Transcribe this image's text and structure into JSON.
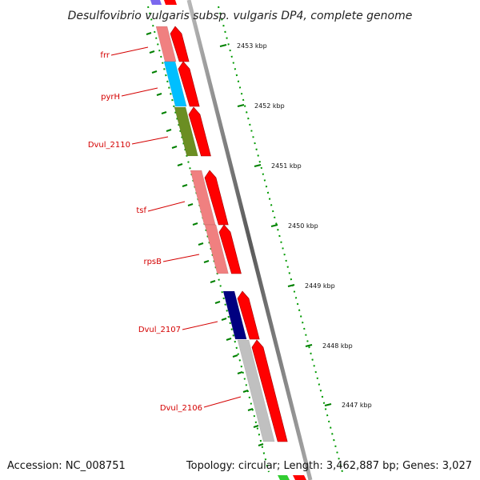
{
  "title": "Desulfovibrio vulgaris subsp. vulgaris DP4, complete genome",
  "footer": {
    "accession": "Accession: NC_008751",
    "summary": "Topology: circular; Length: 3,462,887 bp; Genes: 3,027"
  },
  "scale_labels": [
    {
      "label": "2453 kbp",
      "kbp": 2453
    },
    {
      "label": "2452 kbp",
      "kbp": 2452
    },
    {
      "label": "2451 kbp",
      "kbp": 2451
    },
    {
      "label": "2450 kbp",
      "kbp": 2450
    },
    {
      "label": "2449 kbp",
      "kbp": 2449
    },
    {
      "label": "2448 kbp",
      "kbp": 2448
    },
    {
      "label": "2447 kbp",
      "kbp": 2447
    }
  ],
  "genes": [
    {
      "name": "frr",
      "color": "#f08080"
    },
    {
      "name": "pyrH",
      "color": "#00bfff"
    },
    {
      "name": "Dvul_2110",
      "color": "#6b8e23"
    },
    {
      "name": "tsf",
      "color": "#f08080"
    },
    {
      "name": "rpsB",
      "color": "#f08080"
    },
    {
      "name": "Dvul_2107",
      "color": "#000080"
    },
    {
      "name": "Dvul_2106",
      "color": "#c0c0c0"
    }
  ],
  "colors": {
    "cds_arrow": "#ff0000",
    "label_red": "#d40000",
    "tick_green": "#008000",
    "backbone": "#808080"
  }
}
